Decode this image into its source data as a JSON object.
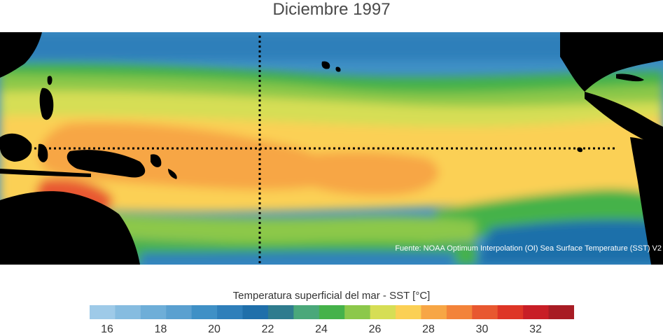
{
  "title": "Diciembre 1997",
  "source": "Fuente: NOAA Optimum Interpolation (OI) Sea Surface Temperature (SST) V2",
  "legend": {
    "title": "Temperatura superficial del mar - SST  [°C]",
    "colors": [
      "#9ecae8",
      "#86bce0",
      "#6eaed8",
      "#5aa0d0",
      "#3f90c6",
      "#2f7fba",
      "#1f6faa",
      "#2f7c8e",
      "#4aa87a",
      "#45b24a",
      "#8cc84a",
      "#d6de55",
      "#fbd055",
      "#f7a645",
      "#f3833a",
      "#e85830",
      "#de3526",
      "#c81e26",
      "#a81c24"
    ],
    "tick_values": [
      16,
      18,
      20,
      22,
      24,
      26,
      28,
      30,
      32
    ],
    "tick_labels": [
      "16",
      "18",
      "20",
      "22",
      "24",
      "26",
      "28",
      "30",
      "32"
    ]
  }
}
